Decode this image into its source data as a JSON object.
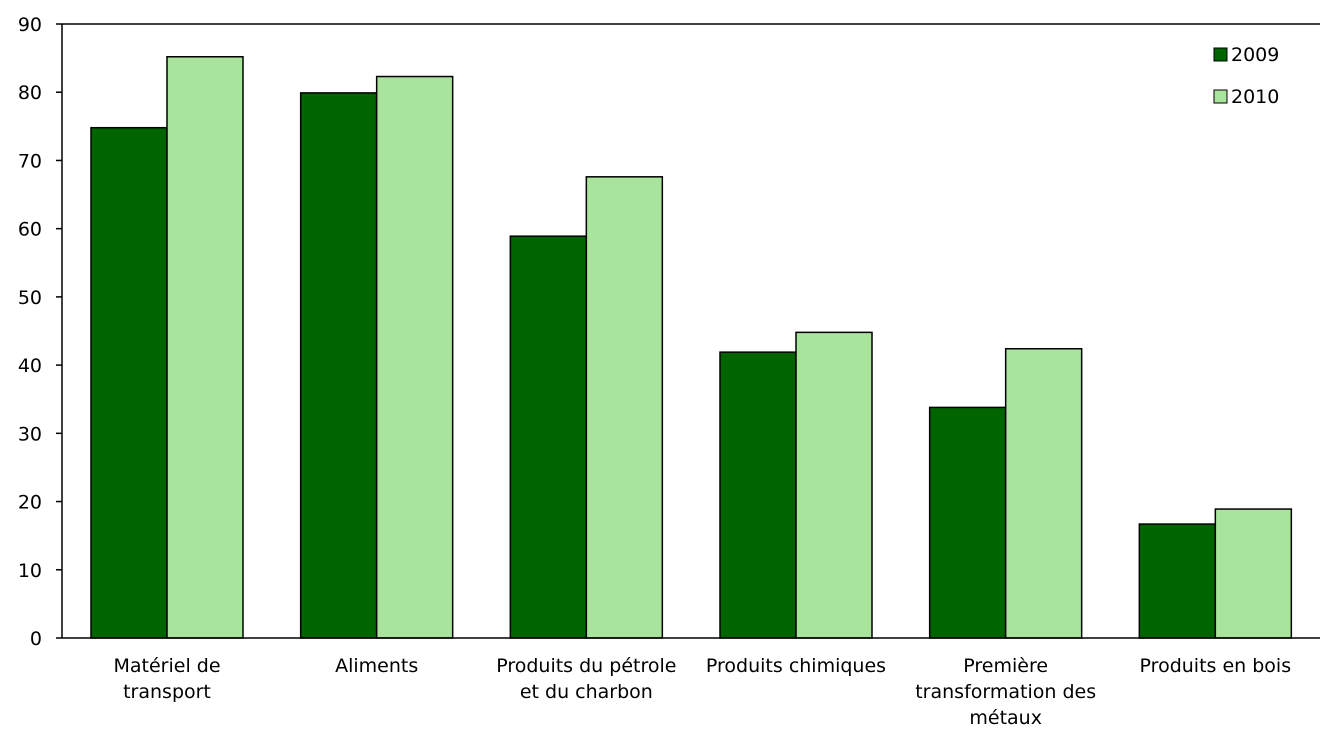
{
  "chart_data": {
    "type": "bar",
    "categories": [
      [
        "Matériel de",
        "transport"
      ],
      [
        "Aliments"
      ],
      [
        "Produits du pétrole",
        "et du charbon"
      ],
      [
        "Produits chimiques"
      ],
      [
        "Première",
        "transformation des",
        "métaux"
      ],
      [
        "Produits en bois"
      ]
    ],
    "series": [
      {
        "name": "2009",
        "color": "#006400",
        "values": [
          74.8,
          79.9,
          58.9,
          41.9,
          33.8,
          16.7
        ]
      },
      {
        "name": "2010",
        "color": "#a8e49c",
        "values": [
          85.2,
          82.3,
          67.6,
          44.8,
          42.4,
          18.9
        ]
      }
    ],
    "ylim": [
      0,
      90
    ],
    "yticks": [
      0,
      10,
      20,
      30,
      40,
      50,
      60,
      70,
      80,
      90
    ],
    "grid": false,
    "legend_position": "top-right",
    "title": "",
    "xlabel": "",
    "ylabel": ""
  }
}
